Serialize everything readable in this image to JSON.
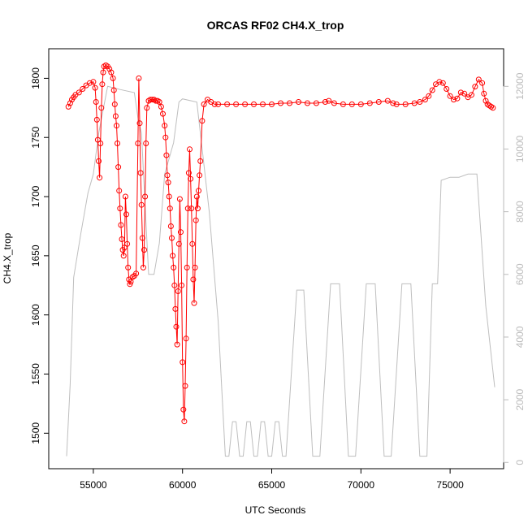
{
  "chart_data": {
    "type": "scatter",
    "title": "ORCAS RF02 CH4.X_trop",
    "xlabel": "UTC Seconds",
    "ylabel": "CH4.X_trop",
    "xlim": [
      52500,
      78000
    ],
    "ylim": [
      1470,
      1825
    ],
    "y2lim": [
      -200,
      13200
    ],
    "xticks": [
      55000,
      60000,
      65000,
      70000,
      75000
    ],
    "yticks": [
      1500,
      1550,
      1600,
      1650,
      1700,
      1750,
      1800
    ],
    "y2ticks": [
      0,
      2000,
      4000,
      6000,
      8000,
      10000,
      12000
    ],
    "colors": {
      "ch4": "#ff0000",
      "altitude": "#bebebe"
    },
    "series": [
      {
        "kind": "points-and-line",
        "values": [
          [
            53600,
            1776
          ],
          [
            53700,
            1779
          ],
          [
            53800,
            1782
          ],
          [
            53900,
            1784
          ],
          [
            54000,
            1786
          ],
          [
            54200,
            1788
          ],
          [
            54400,
            1791
          ],
          [
            54600,
            1794
          ],
          [
            54800,
            1796
          ],
          [
            55000,
            1797
          ],
          [
            55100,
            1792
          ],
          [
            55150,
            1780
          ],
          [
            55200,
            1765
          ],
          [
            55250,
            1748
          ],
          [
            55300,
            1730
          ],
          [
            55350,
            1716
          ],
          [
            55400,
            1745
          ],
          [
            55450,
            1775
          ],
          [
            55500,
            1795
          ],
          [
            55550,
            1805
          ],
          [
            55600,
            1810
          ],
          [
            55700,
            1811
          ],
          [
            55800,
            1810
          ],
          [
            55900,
            1808
          ],
          [
            56000,
            1805
          ],
          [
            56100,
            1800
          ],
          [
            56150,
            1790
          ],
          [
            56200,
            1778
          ],
          [
            56250,
            1768
          ],
          [
            56300,
            1760
          ],
          [
            56350,
            1745
          ],
          [
            56400,
            1725
          ],
          [
            56450,
            1705
          ],
          [
            56500,
            1690
          ],
          [
            56550,
            1676
          ],
          [
            56600,
            1664
          ],
          [
            56650,
            1655
          ],
          [
            56700,
            1650
          ],
          [
            56750,
            1657
          ],
          [
            56800,
            1700
          ],
          [
            56850,
            1685
          ],
          [
            56900,
            1660
          ],
          [
            56950,
            1640
          ],
          [
            57000,
            1630
          ],
          [
            57050,
            1626
          ],
          [
            57100,
            1628
          ],
          [
            57200,
            1632
          ],
          [
            57300,
            1633
          ],
          [
            57400,
            1635
          ],
          [
            57500,
            1745
          ],
          [
            57550,
            1800
          ],
          [
            57600,
            1762
          ],
          [
            57650,
            1720
          ],
          [
            57700,
            1693
          ],
          [
            57750,
            1665
          ],
          [
            57800,
            1640
          ],
          [
            57850,
            1655
          ],
          [
            57900,
            1700
          ],
          [
            57950,
            1745
          ],
          [
            58000,
            1775
          ],
          [
            58100,
            1781
          ],
          [
            58200,
            1782
          ],
          [
            58300,
            1782
          ],
          [
            58400,
            1782
          ],
          [
            58500,
            1781
          ],
          [
            58600,
            1781
          ],
          [
            58700,
            1780
          ],
          [
            58800,
            1776
          ],
          [
            58900,
            1770
          ],
          [
            59000,
            1760
          ],
          [
            59050,
            1750
          ],
          [
            59100,
            1735
          ],
          [
            59150,
            1718
          ],
          [
            59200,
            1712
          ],
          [
            59250,
            1700
          ],
          [
            59300,
            1690
          ],
          [
            59350,
            1675
          ],
          [
            59400,
            1665
          ],
          [
            59450,
            1650
          ],
          [
            59500,
            1640
          ],
          [
            59550,
            1625
          ],
          [
            59600,
            1605
          ],
          [
            59650,
            1590
          ],
          [
            59700,
            1575
          ],
          [
            59750,
            1620
          ],
          [
            59800,
            1660
          ],
          [
            59850,
            1698
          ],
          [
            59900,
            1670
          ],
          [
            59950,
            1625
          ],
          [
            60000,
            1560
          ],
          [
            60050,
            1520
          ],
          [
            60100,
            1510
          ],
          [
            60150,
            1540
          ],
          [
            60200,
            1580
          ],
          [
            60250,
            1640
          ],
          [
            60300,
            1690
          ],
          [
            60350,
            1720
          ],
          [
            60400,
            1740
          ],
          [
            60450,
            1715
          ],
          [
            60500,
            1690
          ],
          [
            60550,
            1660
          ],
          [
            60600,
            1630
          ],
          [
            60650,
            1610
          ],
          [
            60700,
            1640
          ],
          [
            60750,
            1680
          ],
          [
            60800,
            1700
          ],
          [
            60850,
            1690
          ],
          [
            60900,
            1705
          ],
          [
            60950,
            1718
          ],
          [
            61000,
            1730
          ],
          [
            61100,
            1764
          ],
          [
            61200,
            1778
          ],
          [
            61400,
            1782
          ],
          [
            61600,
            1780
          ],
          [
            61800,
            1778
          ],
          [
            62000,
            1778
          ],
          [
            62500,
            1778
          ],
          [
            63000,
            1778
          ],
          [
            63500,
            1778
          ],
          [
            64000,
            1778
          ],
          [
            64500,
            1778
          ],
          [
            65000,
            1778
          ],
          [
            65500,
            1779
          ],
          [
            66000,
            1779
          ],
          [
            66500,
            1780
          ],
          [
            67000,
            1779
          ],
          [
            67500,
            1779
          ],
          [
            68000,
            1780
          ],
          [
            68200,
            1781
          ],
          [
            68500,
            1779
          ],
          [
            69000,
            1778
          ],
          [
            69500,
            1778
          ],
          [
            70000,
            1778
          ],
          [
            70500,
            1779
          ],
          [
            71000,
            1780
          ],
          [
            71500,
            1781
          ],
          [
            71800,
            1779
          ],
          [
            72000,
            1778
          ],
          [
            72500,
            1778
          ],
          [
            73000,
            1779
          ],
          [
            73300,
            1780
          ],
          [
            73600,
            1782
          ],
          [
            73800,
            1785
          ],
          [
            74000,
            1790
          ],
          [
            74200,
            1795
          ],
          [
            74400,
            1797
          ],
          [
            74600,
            1796
          ],
          [
            74800,
            1791
          ],
          [
            75000,
            1785
          ],
          [
            75200,
            1782
          ],
          [
            75400,
            1783
          ],
          [
            75600,
            1788
          ],
          [
            75800,
            1787
          ],
          [
            76000,
            1784
          ],
          [
            76200,
            1786
          ],
          [
            76400,
            1793
          ],
          [
            76600,
            1799
          ],
          [
            76800,
            1796
          ],
          [
            76900,
            1787
          ],
          [
            77000,
            1781
          ],
          [
            77100,
            1778
          ],
          [
            77200,
            1777
          ],
          [
            77300,
            1776
          ],
          [
            77400,
            1775
          ]
        ]
      },
      {
        "kind": "line",
        "axis": "right",
        "values": [
          [
            53500,
            200
          ],
          [
            53700,
            2500
          ],
          [
            53900,
            5900
          ],
          [
            54300,
            7300
          ],
          [
            54700,
            8600
          ],
          [
            55000,
            9200
          ],
          [
            55300,
            10500
          ],
          [
            55800,
            12000
          ],
          [
            56500,
            11900
          ],
          [
            57300,
            11800
          ],
          [
            57500,
            11000
          ],
          [
            57700,
            10500
          ],
          [
            57900,
            8200
          ],
          [
            58100,
            6000
          ],
          [
            58400,
            6000
          ],
          [
            58700,
            7000
          ],
          [
            59000,
            9200
          ],
          [
            59500,
            10200
          ],
          [
            59800,
            11500
          ],
          [
            60000,
            11600
          ],
          [
            60800,
            11500
          ],
          [
            61100,
            10000
          ],
          [
            61500,
            8000
          ],
          [
            62000,
            4500
          ],
          [
            62400,
            200
          ],
          [
            62600,
            200
          ],
          [
            62800,
            1300
          ],
          [
            63000,
            1300
          ],
          [
            63200,
            200
          ],
          [
            63400,
            200
          ],
          [
            63600,
            1300
          ],
          [
            63800,
            1300
          ],
          [
            64000,
            200
          ],
          [
            64200,
            200
          ],
          [
            64400,
            1300
          ],
          [
            64600,
            1300
          ],
          [
            64800,
            200
          ],
          [
            65000,
            200
          ],
          [
            65200,
            1300
          ],
          [
            65400,
            1300
          ],
          [
            65600,
            200
          ],
          [
            65800,
            200
          ],
          [
            66400,
            5500
          ],
          [
            66800,
            5500
          ],
          [
            67300,
            200
          ],
          [
            67700,
            200
          ],
          [
            68300,
            5700
          ],
          [
            68800,
            5700
          ],
          [
            69300,
            200
          ],
          [
            69700,
            200
          ],
          [
            70300,
            5700
          ],
          [
            70800,
            5700
          ],
          [
            71300,
            200
          ],
          [
            71700,
            200
          ],
          [
            72300,
            5700
          ],
          [
            72800,
            5700
          ],
          [
            73300,
            200
          ],
          [
            73700,
            200
          ],
          [
            74000,
            5700
          ],
          [
            74300,
            5700
          ],
          [
            74500,
            9000
          ],
          [
            75000,
            9100
          ],
          [
            75500,
            9100
          ],
          [
            76000,
            9200
          ],
          [
            76500,
            9200
          ],
          [
            77000,
            5000
          ],
          [
            77500,
            2400
          ]
        ]
      }
    ]
  }
}
